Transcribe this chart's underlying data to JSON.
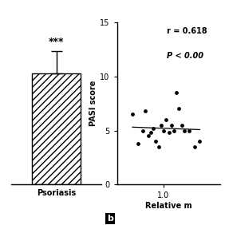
{
  "bar_value": 11.0,
  "bar_error": 2.2,
  "bar_color": "white",
  "bar_edgecolor": "black",
  "bar_hatch": "////",
  "bar_label": "Psoriasis",
  "significance": "***",
  "scatter_x": [
    0.88,
    0.9,
    0.92,
    0.93,
    0.94,
    0.95,
    0.96,
    0.97,
    0.98,
    0.99,
    1.0,
    1.01,
    1.02,
    1.03,
    1.04,
    1.05,
    1.06,
    1.07,
    1.08,
    1.1,
    1.12,
    1.14
  ],
  "scatter_y": [
    6.5,
    3.8,
    5.0,
    6.8,
    4.5,
    4.8,
    5.2,
    4.0,
    3.5,
    5.5,
    5.0,
    6.0,
    4.8,
    5.5,
    5.0,
    8.5,
    7.0,
    5.5,
    5.0,
    5.0,
    3.5,
    4.0
  ],
  "right_ylabel": "PASI score",
  "right_ylim": [
    0,
    15
  ],
  "right_yticks": [
    0,
    5,
    10,
    15
  ],
  "right_xlabel": "Relative m",
  "right_xticks": [
    1.0
  ],
  "right_xlim": [
    0.82,
    1.22
  ],
  "annot_line1": "r = 0.618",
  "annot_line2": "P < 0.00",
  "panel_label": "b",
  "background_color": "#ffffff",
  "font_color": "black",
  "fontsize_label": 7,
  "fontsize_tick": 7,
  "fontsize_annot": 7,
  "fontsize_sig": 9,
  "fontsize_panel": 8
}
